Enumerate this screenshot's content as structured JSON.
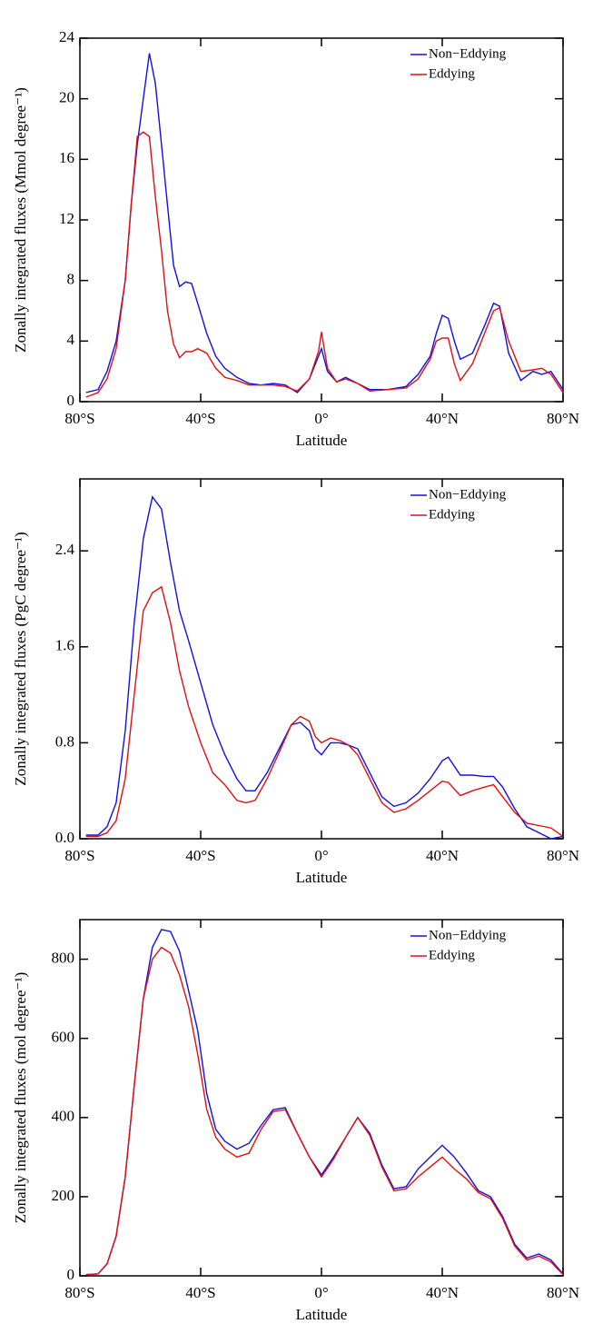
{
  "chart_data": [
    {
      "type": "line",
      "xlabel": "Latitude",
      "ylabel": "Zonally integrated fluxes (Mmol degree⁻¹)",
      "xlim": [
        -80,
        80
      ],
      "ylim": [
        0,
        24
      ],
      "xticks": [
        {
          "value": -80,
          "label": "80°S"
        },
        {
          "value": -40,
          "label": "40°S"
        },
        {
          "value": 0,
          "label": "0°"
        },
        {
          "value": 40,
          "label": "40°N"
        },
        {
          "value": 80,
          "label": "80°N"
        }
      ],
      "yticks": [
        0,
        4,
        8,
        12,
        16,
        20,
        24
      ],
      "legend": "upper right",
      "x": [
        -78,
        -74,
        -71,
        -68,
        -65,
        -63,
        -61,
        -59,
        -57,
        -55,
        -53,
        -51,
        -49,
        -47,
        -45,
        -43,
        -41,
        -38,
        -35,
        -32,
        -28,
        -24,
        -20,
        -16,
        -12,
        -8,
        -4,
        -1,
        0,
        2,
        5,
        8,
        12,
        16,
        22,
        28,
        32,
        36,
        38,
        40,
        42,
        44,
        46,
        50,
        54,
        57,
        59,
        62,
        66,
        70,
        73,
        76,
        80
      ],
      "series": [
        {
          "name": "Non−Eddying",
          "color": "#1010e0",
          "values": [
            0.6,
            0.8,
            2,
            4,
            8,
            13,
            17,
            20,
            23,
            21,
            17,
            13,
            9,
            7.6,
            7.9,
            7.8,
            6.5,
            4.5,
            3,
            2.2,
            1.6,
            1.2,
            1.1,
            1.2,
            1.1,
            0.6,
            1.5,
            3,
            3.5,
            2,
            1.3,
            1.6,
            1.2,
            0.8,
            0.8,
            1.0,
            1.8,
            3,
            4.5,
            5.7,
            5.5,
            4,
            2.8,
            3.2,
            5,
            6.5,
            6.3,
            3.2,
            1.4,
            2.0,
            1.8,
            2,
            0.8
          ]
        },
        {
          "name": "Eddying",
          "color": "#e01010",
          "values": [
            0.3,
            0.6,
            1.5,
            3.5,
            8,
            13,
            17.5,
            17.8,
            17.5,
            13.5,
            10,
            6,
            3.8,
            2.9,
            3.3,
            3.3,
            3.5,
            3.2,
            2.2,
            1.6,
            1.4,
            1.1,
            1.1,
            1.1,
            1.0,
            0.7,
            1.5,
            3.3,
            4.6,
            2.2,
            1.3,
            1.5,
            1.2,
            0.7,
            0.8,
            0.9,
            1.5,
            2.8,
            4.0,
            4.2,
            4.2,
            2.5,
            1.4,
            2.5,
            4.5,
            6,
            6.2,
            4,
            2,
            2.1,
            2.2,
            1.8,
            0.6
          ]
        }
      ]
    },
    {
      "type": "line",
      "xlabel": "Latitude",
      "ylabel": "Zonally integrated fluxes (PgC degree⁻¹)",
      "xlim": [
        -80,
        80
      ],
      "ylim": [
        0,
        3.0
      ],
      "xticks": [
        {
          "value": -80,
          "label": "80°S"
        },
        {
          "value": -40,
          "label": "40°S"
        },
        {
          "value": 0,
          "label": "0°"
        },
        {
          "value": 40,
          "label": "40°N"
        },
        {
          "value": 80,
          "label": "80°N"
        }
      ],
      "yticks": [
        {
          "value": 0,
          "label": "0.0"
        },
        0.8,
        1.6,
        2.4
      ],
      "legend": "upper right",
      "x": [
        -78,
        -74,
        -71,
        -68,
        -65,
        -62,
        -59,
        -56,
        -53,
        -50,
        -47,
        -44,
        -40,
        -36,
        -32,
        -28,
        -25,
        -22,
        -18,
        -14,
        -10,
        -7,
        -4,
        -2,
        0,
        3,
        6,
        9,
        12,
        16,
        20,
        24,
        28,
        32,
        36,
        40,
        42,
        46,
        50,
        54,
        57,
        60,
        64,
        68,
        72,
        76,
        80
      ],
      "series": [
        {
          "name": "Non−Eddying",
          "color": "#1010e0",
          "values": [
            0.03,
            0.03,
            0.1,
            0.3,
            0.9,
            1.8,
            2.5,
            2.85,
            2.75,
            2.3,
            1.9,
            1.65,
            1.3,
            0.95,
            0.7,
            0.5,
            0.4,
            0.4,
            0.55,
            0.75,
            0.95,
            0.97,
            0.9,
            0.75,
            0.7,
            0.8,
            0.8,
            0.78,
            0.75,
            0.55,
            0.35,
            0.27,
            0.3,
            0.38,
            0.5,
            0.65,
            0.68,
            0.53,
            0.53,
            0.52,
            0.52,
            0.43,
            0.25,
            0.1,
            0.05,
            0.0,
            0.02
          ]
        },
        {
          "name": "Eddying",
          "color": "#e01010",
          "values": [
            0.02,
            0.02,
            0.05,
            0.15,
            0.5,
            1.2,
            1.9,
            2.05,
            2.1,
            1.8,
            1.4,
            1.1,
            0.8,
            0.55,
            0.45,
            0.32,
            0.3,
            0.32,
            0.5,
            0.72,
            0.95,
            1.02,
            0.98,
            0.85,
            0.8,
            0.84,
            0.82,
            0.78,
            0.7,
            0.5,
            0.3,
            0.22,
            0.25,
            0.32,
            0.4,
            0.48,
            0.47,
            0.36,
            0.4,
            0.43,
            0.45,
            0.35,
            0.22,
            0.13,
            0.11,
            0.09,
            0.02
          ]
        }
      ]
    },
    {
      "type": "line",
      "xlabel": "Latitude",
      "ylabel": "Zonally integrated fluxes (mol degree⁻¹)",
      "xlim": [
        -80,
        80
      ],
      "ylim": [
        0,
        900
      ],
      "xticks": [
        {
          "value": -80,
          "label": "80°S"
        },
        {
          "value": -40,
          "label": "40°S"
        },
        {
          "value": 0,
          "label": "0°"
        },
        {
          "value": 40,
          "label": "40°N"
        },
        {
          "value": 80,
          "label": "80°N"
        }
      ],
      "yticks": [
        0,
        200,
        400,
        600,
        800
      ],
      "legend": "upper right",
      "x": [
        -78,
        -74,
        -71,
        -68,
        -65,
        -62,
        -59,
        -56,
        -53,
        -50,
        -47,
        -44,
        -41,
        -38,
        -35,
        -32,
        -28,
        -24,
        -20,
        -16,
        -12,
        -8,
        -4,
        0,
        4,
        8,
        12,
        16,
        20,
        24,
        28,
        32,
        36,
        40,
        44,
        48,
        52,
        56,
        60,
        64,
        68,
        72,
        76,
        80
      ],
      "series": [
        {
          "name": "Non−Eddying",
          "color": "#1010e0",
          "values": [
            3,
            5,
            30,
            100,
            250,
            480,
            700,
            830,
            875,
            870,
            820,
            720,
            620,
            460,
            370,
            340,
            320,
            335,
            380,
            420,
            425,
            360,
            300,
            255,
            300,
            350,
            400,
            360,
            280,
            220,
            225,
            270,
            300,
            330,
            300,
            260,
            215,
            200,
            150,
            80,
            45,
            55,
            40,
            5
          ]
        },
        {
          "name": "Eddying",
          "color": "#e01010",
          "values": [
            3,
            5,
            30,
            100,
            250,
            480,
            700,
            800,
            830,
            815,
            760,
            680,
            560,
            420,
            350,
            320,
            300,
            310,
            370,
            415,
            420,
            360,
            300,
            250,
            295,
            350,
            400,
            355,
            275,
            215,
            220,
            250,
            275,
            300,
            270,
            245,
            210,
            195,
            145,
            75,
            40,
            50,
            35,
            3
          ]
        }
      ]
    }
  ]
}
